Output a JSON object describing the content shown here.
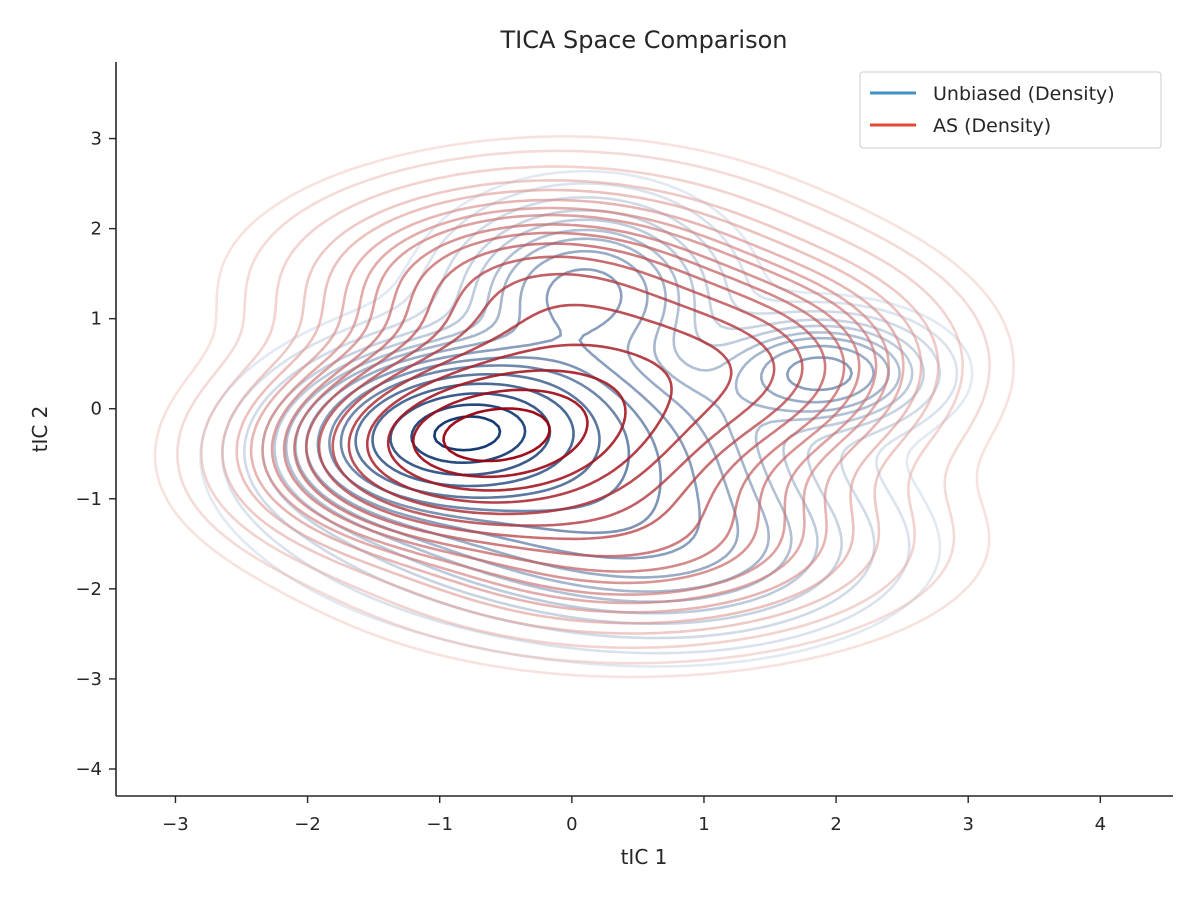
{
  "chart_data": {
    "type": "contour",
    "title": "TICA Space Comparison",
    "xlabel": "tIC 1",
    "ylabel": "tIC 2",
    "xlim": [
      -3.45,
      4.55
    ],
    "ylim": [
      -4.3,
      3.85
    ],
    "xticks": [
      -3,
      -2,
      -1,
      0,
      1,
      2,
      3,
      4
    ],
    "yticks": [
      -4,
      -3,
      -2,
      -1,
      0,
      1,
      2,
      3
    ],
    "xtick_labels": [
      "−3",
      "−2",
      "−1",
      "0",
      "1",
      "2",
      "3",
      "4"
    ],
    "ytick_labels": [
      "−4",
      "−3",
      "−2",
      "−1",
      "0",
      "1",
      "2",
      "3"
    ],
    "grid": false,
    "legend_position": "top-right",
    "series": [
      {
        "name": "Unbiased (Density)",
        "legend_color": "#4292c6",
        "color_light": "#deebf7",
        "color_dark": "#08306b",
        "modes": [
          {
            "x": -0.85,
            "y": -0.25,
            "sx": 0.55,
            "sy": 0.42,
            "rho": 0.15,
            "w": 1.0
          },
          {
            "x": -0.15,
            "y": -0.6,
            "sx": 0.9,
            "sy": 0.7,
            "rho": 0.0,
            "w": 0.35
          },
          {
            "x": 0.1,
            "y": 1.3,
            "sx": 0.5,
            "sy": 0.5,
            "rho": 0.0,
            "w": 0.22
          },
          {
            "x": 1.9,
            "y": 0.4,
            "sx": 0.42,
            "sy": 0.32,
            "rho": 0.0,
            "w": 0.22
          },
          {
            "x": 0.8,
            "y": -1.6,
            "sx": 0.8,
            "sy": 0.5,
            "rho": 0.0,
            "w": 0.12
          }
        ],
        "levels": [
          0.005,
          0.01,
          0.02,
          0.035,
          0.05,
          0.07,
          0.09,
          0.12,
          0.16,
          0.21,
          0.27,
          0.36,
          0.48,
          0.62,
          0.78,
          0.92
        ]
      },
      {
        "name": "AS (Density)",
        "legend_color": "#e34a33",
        "color_light": "#fee0d2",
        "color_dark": "#99000d",
        "modes": [
          {
            "x": -0.75,
            "y": -0.35,
            "sx": 0.75,
            "sy": 0.55,
            "rho": 0.1,
            "w": 1.0
          },
          {
            "x": 0.2,
            "y": 0.2,
            "sx": 0.9,
            "sy": 0.9,
            "rho": 0.0,
            "w": 0.45
          },
          {
            "x": -0.3,
            "y": 1.4,
            "sx": 0.85,
            "sy": 0.55,
            "rho": 0.0,
            "w": 0.25
          },
          {
            "x": 1.4,
            "y": 0.5,
            "sx": 0.7,
            "sy": 0.6,
            "rho": 0.0,
            "w": 0.25
          },
          {
            "x": 0.5,
            "y": -1.5,
            "sx": 1.0,
            "sy": 0.55,
            "rho": 0.0,
            "w": 0.2
          }
        ],
        "levels": [
          0.005,
          0.01,
          0.02,
          0.035,
          0.05,
          0.07,
          0.09,
          0.11,
          0.14,
          0.17,
          0.21,
          0.26,
          0.32,
          0.4,
          0.5,
          0.62,
          0.76,
          0.9
        ]
      }
    ]
  }
}
